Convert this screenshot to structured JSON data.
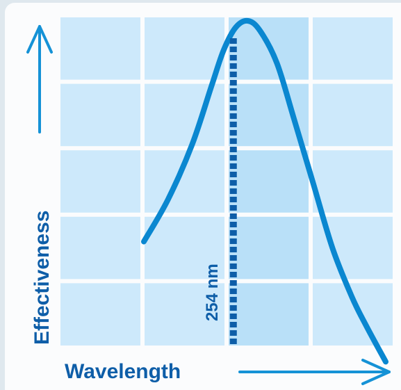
{
  "chart_data": {
    "type": "line",
    "title": "",
    "xlabel": "Wavelength",
    "ylabel": "Effectiveness",
    "grid": true,
    "grid_cells": {
      "columns": 4,
      "rows": 5
    },
    "marker": {
      "label": "254 nm",
      "style": "dashed-vertical-line"
    },
    "colors": {
      "curve": "#0a87d0",
      "axis_arrows": "#1592d6",
      "marker": "#0e5ea8",
      "grid_cell": "#cde9fb",
      "grid_cell_highlight": "#b9e0f8",
      "label_text": "#0e5ea8"
    },
    "series": [
      {
        "name": "",
        "note": "relative effectiveness, 0 = bottom of grid, 1 = top of grid; x as fraction of grid width",
        "x": [
          0.0,
          0.1,
          0.2,
          0.28,
          0.33,
          0.38,
          0.43,
          0.48,
          0.55,
          0.62,
          0.7,
          0.78,
          0.86,
          0.92,
          1.0
        ],
        "y": [
          0.32,
          0.45,
          0.62,
          0.8,
          0.91,
          0.98,
          1.0,
          0.97,
          0.87,
          0.7,
          0.5,
          0.3,
          0.15,
          0.06,
          -0.05
        ]
      }
    ],
    "marker_x": 0.37
  }
}
